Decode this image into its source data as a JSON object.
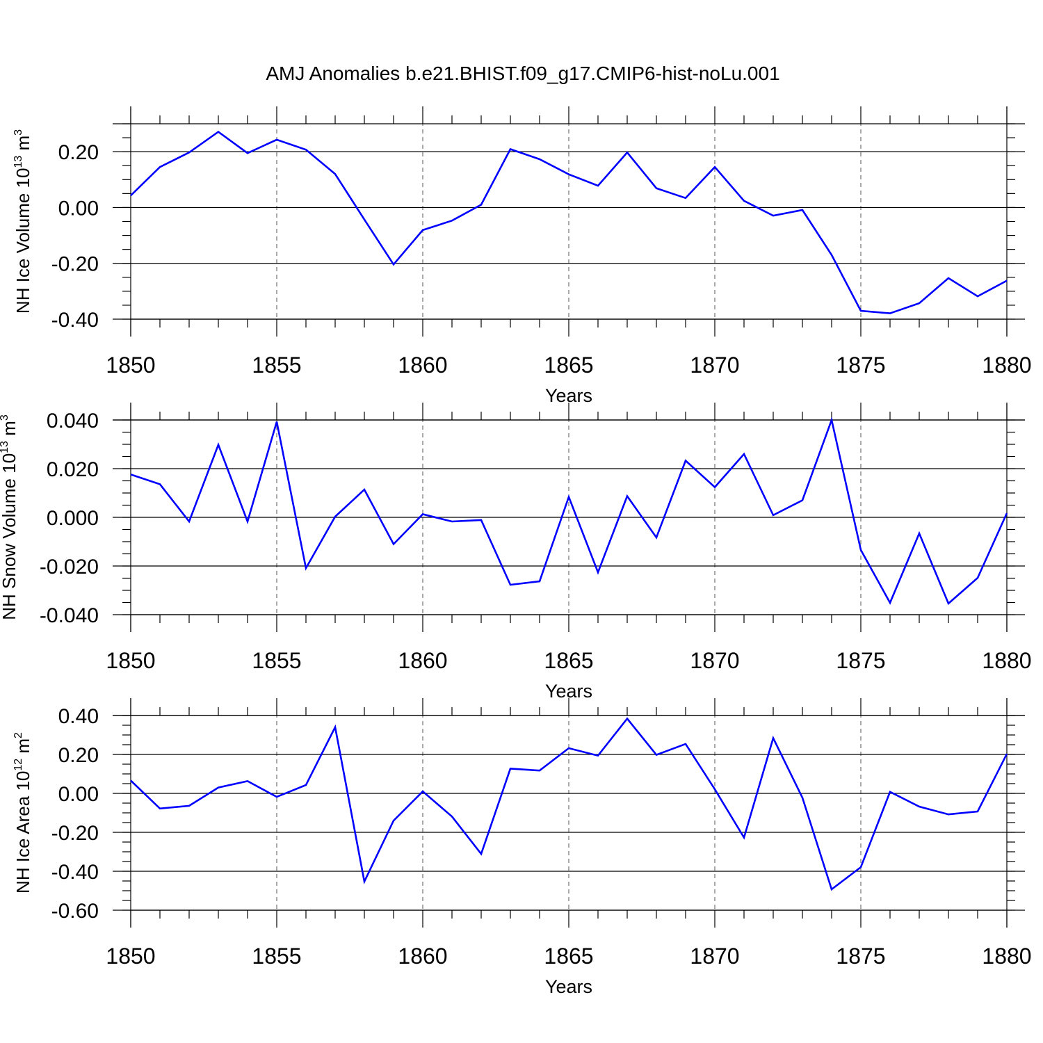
{
  "title": "AMJ Anomalies b.e21.BHIST.f09_g17.CMIP6-hist-noLu.001",
  "colors": {
    "series": "#0000ff",
    "axes": "#000000",
    "grid": "#555555"
  },
  "chart_data": [
    {
      "type": "line",
      "ylabel_main": "NH Ice Volume 10",
      "ylabel_exp": "13",
      "ylabel_unit": " m",
      "ylabel_unit_exp": "3",
      "xlabel": "Years",
      "xlim": [
        1850,
        1880
      ],
      "ylim": [
        -0.4,
        0.3
      ],
      "yticks": [
        -0.4,
        -0.2,
        0.0,
        0.2
      ],
      "ytick_labels": [
        "-0.40",
        "-0.20",
        "0.00",
        "0.20"
      ],
      "xticks": [
        1850,
        1855,
        1860,
        1865,
        1870,
        1875,
        1880
      ],
      "xtick_labels": [
        "1850",
        "1855",
        "1860",
        "1865",
        "1870",
        "1875",
        "1880"
      ],
      "reference_line": 0.3,
      "grid": "dashed vertical at major x ticks",
      "x": [
        1850,
        1851,
        1852,
        1853,
        1854,
        1855,
        1856,
        1857,
        1858,
        1859,
        1860,
        1861,
        1862,
        1863,
        1864,
        1865,
        1866,
        1867,
        1868,
        1869,
        1870,
        1871,
        1872,
        1873,
        1874,
        1875,
        1876,
        1877,
        1878,
        1879,
        1880
      ],
      "values": [
        0.043,
        0.145,
        0.197,
        0.271,
        0.195,
        0.243,
        0.207,
        0.12,
        -0.043,
        -0.204,
        -0.081,
        -0.047,
        0.01,
        0.209,
        0.173,
        0.119,
        0.078,
        0.197,
        0.069,
        0.034,
        0.145,
        0.024,
        -0.029,
        -0.009,
        -0.17,
        -0.37,
        -0.379,
        -0.343,
        -0.253,
        -0.318,
        -0.262
      ]
    },
    {
      "type": "line",
      "ylabel_main": "NH Snow Volume 10",
      "ylabel_exp": "13",
      "ylabel_unit": " m",
      "ylabel_unit_exp": "3",
      "xlabel": "Years",
      "xlim": [
        1850,
        1880
      ],
      "ylim": [
        -0.04,
        0.04
      ],
      "yticks": [
        -0.04,
        -0.02,
        0.0,
        0.02,
        0.04
      ],
      "ytick_labels": [
        "-0.040",
        "-0.020",
        "0.000",
        "0.020",
        "0.040"
      ],
      "xticks": [
        1850,
        1855,
        1860,
        1865,
        1870,
        1875,
        1880
      ],
      "xtick_labels": [
        "1850",
        "1855",
        "1860",
        "1865",
        "1870",
        "1875",
        "1880"
      ],
      "reference_line": 0.04,
      "grid": "dashed vertical at major x ticks",
      "x": [
        1850,
        1851,
        1852,
        1853,
        1854,
        1855,
        1856,
        1857,
        1858,
        1859,
        1860,
        1861,
        1862,
        1863,
        1864,
        1865,
        1866,
        1867,
        1868,
        1869,
        1870,
        1871,
        1872,
        1873,
        1874,
        1875,
        1876,
        1877,
        1878,
        1879,
        1880
      ],
      "values": [
        0.0176,
        0.0136,
        -0.0017,
        0.0298,
        -0.0017,
        0.0393,
        -0.0209,
        0.0003,
        0.0114,
        -0.011,
        0.0013,
        -0.0017,
        -0.0011,
        -0.0277,
        -0.0263,
        0.0084,
        -0.0226,
        0.0087,
        -0.0083,
        0.0233,
        0.0124,
        0.026,
        0.0009,
        0.007,
        0.04,
        -0.0134,
        -0.0351,
        -0.0066,
        -0.0354,
        -0.0249,
        0.0017
      ]
    },
    {
      "type": "line",
      "ylabel_main": "NH Ice Area 10",
      "ylabel_exp": "12",
      "ylabel_unit": " m",
      "ylabel_unit_exp": "2",
      "xlabel": "Years",
      "xlim": [
        1850,
        1880
      ],
      "ylim": [
        -0.6,
        0.4
      ],
      "yticks": [
        -0.6,
        -0.4,
        -0.2,
        0.0,
        0.2,
        0.4
      ],
      "ytick_labels": [
        "-0.60",
        "-0.40",
        "-0.20",
        "0.00",
        "0.20",
        "0.40"
      ],
      "xticks": [
        1850,
        1855,
        1860,
        1865,
        1870,
        1875,
        1880
      ],
      "xtick_labels": [
        "1850",
        "1855",
        "1860",
        "1865",
        "1870",
        "1875",
        "1880"
      ],
      "reference_line": 0.4,
      "grid": "dashed vertical at major x ticks",
      "x": [
        1850,
        1851,
        1852,
        1853,
        1854,
        1855,
        1856,
        1857,
        1858,
        1859,
        1860,
        1861,
        1862,
        1863,
        1864,
        1865,
        1866,
        1867,
        1868,
        1869,
        1870,
        1871,
        1872,
        1873,
        1874,
        1875,
        1876,
        1877,
        1878,
        1879,
        1880
      ],
      "values": [
        0.066,
        -0.078,
        -0.064,
        0.03,
        0.063,
        -0.018,
        0.043,
        0.34,
        -0.453,
        -0.14,
        0.01,
        -0.119,
        -0.311,
        0.127,
        0.117,
        0.232,
        0.194,
        0.384,
        0.198,
        0.254,
        0.021,
        -0.227,
        0.284,
        -0.022,
        -0.493,
        -0.379,
        0.008,
        -0.068,
        -0.108,
        -0.093,
        0.203
      ]
    }
  ]
}
